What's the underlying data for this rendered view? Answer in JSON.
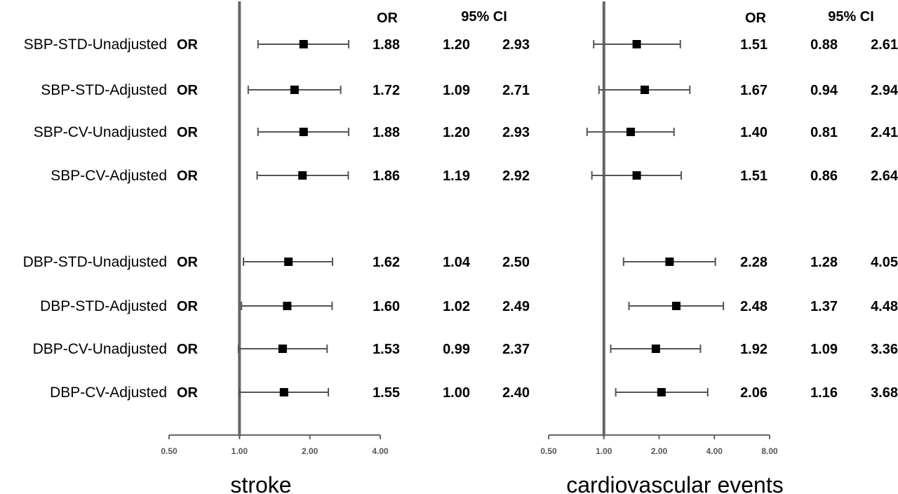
{
  "chart_data": [
    {
      "type": "forest",
      "title": "stroke",
      "x_scale": "log",
      "xlim": [
        0.5,
        4.0
      ],
      "reference_line": 1.0,
      "tick_labels": [
        "0.50",
        "1.00",
        "2.00",
        "4.00"
      ],
      "tick_values": [
        0.5,
        1.0,
        2.0,
        4.0
      ],
      "headers": {
        "or": "OR",
        "ci": "95% CI"
      },
      "or_label": "OR",
      "rows": [
        {
          "label": "SBP-STD-Unadjusted",
          "or": "1.88",
          "lower": "1.20",
          "upper": "2.93"
        },
        {
          "label": "SBP-STD-Adjusted",
          "or": "1.72",
          "lower": "1.09",
          "upper": "2.71"
        },
        {
          "label": "SBP-CV-Unadjusted",
          "or": "1.88",
          "lower": "1.20",
          "upper": "2.93"
        },
        {
          "label": "SBP-CV-Adjusted",
          "or": "1.86",
          "lower": "1.19",
          "upper": "2.92"
        },
        {
          "label": "DBP-STD-Unadjusted",
          "or": "1.62",
          "lower": "1.04",
          "upper": "2.50"
        },
        {
          "label": "DBP-STD-Adjusted",
          "or": "1.60",
          "lower": "1.02",
          "upper": "2.49"
        },
        {
          "label": "DBP-CV-Unadjusted",
          "or": "1.53",
          "lower": "0.99",
          "upper": "2.37"
        },
        {
          "label": "DBP-CV-Adjusted",
          "or": "1.55",
          "lower": "1.00",
          "upper": "2.40"
        }
      ]
    },
    {
      "type": "forest",
      "title": "cardiovascular events",
      "x_scale": "log",
      "xlim": [
        0.5,
        8.0
      ],
      "reference_line": 1.0,
      "tick_labels": [
        "0.50",
        "1.00",
        "2.00",
        "4.00",
        "8.00"
      ],
      "tick_values": [
        0.5,
        1.0,
        2.0,
        4.0,
        8.0
      ],
      "headers": {
        "or": "OR",
        "ci": "95% CI"
      },
      "rows": [
        {
          "or": "1.51",
          "lower": "0.88",
          "upper": "2.61"
        },
        {
          "or": "1.67",
          "lower": "0.94",
          "upper": "2.94"
        },
        {
          "or": "1.40",
          "lower": "0.81",
          "upper": "2.41"
        },
        {
          "or": "1.51",
          "lower": "0.86",
          "upper": "2.64"
        },
        {
          "or": "2.28",
          "lower": "1.28",
          "upper": "4.05"
        },
        {
          "or": "2.48",
          "lower": "1.37",
          "upper": "4.48"
        },
        {
          "or": "1.92",
          "lower": "1.09",
          "upper": "3.36"
        },
        {
          "or": "2.06",
          "lower": "1.16",
          "upper": "3.68"
        }
      ]
    }
  ]
}
